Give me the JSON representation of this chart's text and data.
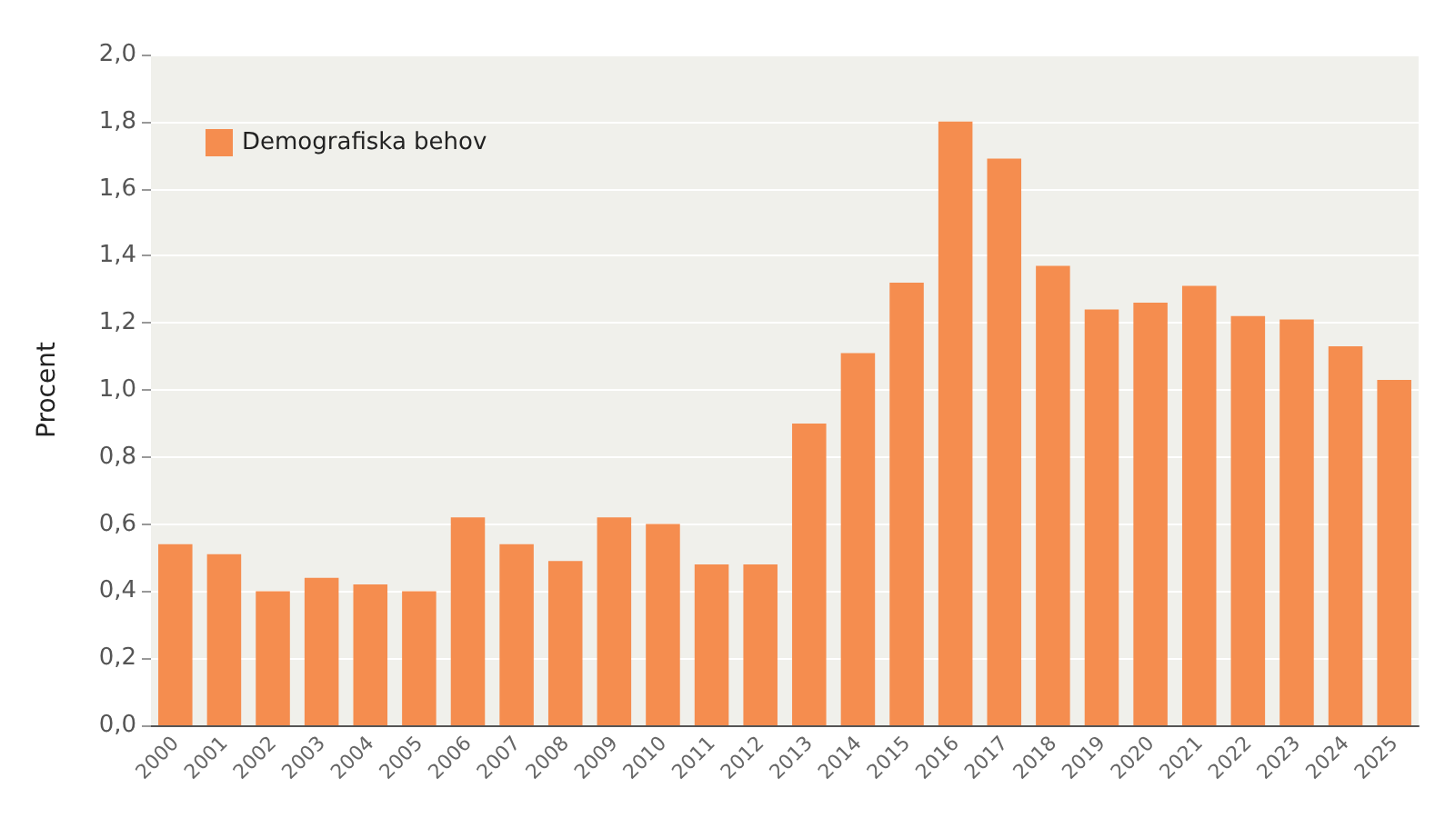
{
  "chart_data": {
    "type": "bar",
    "ylabel": "Procent",
    "categories": [
      "2000",
      "2001",
      "2002",
      "2003",
      "2004",
      "2005",
      "2006",
      "2007",
      "2008",
      "2009",
      "2010",
      "2011",
      "2012",
      "2013",
      "2014",
      "2015",
      "2016",
      "2017",
      "2018",
      "2019",
      "2020",
      "2021",
      "2022",
      "2023",
      "2024",
      "2025"
    ],
    "series": [
      {
        "name": "Demografiska behov",
        "color": "#f58d4f",
        "values": [
          0.54,
          0.51,
          0.4,
          0.44,
          0.42,
          0.4,
          0.62,
          0.54,
          0.49,
          0.62,
          0.6,
          0.48,
          0.48,
          0.9,
          1.11,
          1.32,
          1.8,
          1.69,
          1.37,
          1.24,
          1.26,
          1.31,
          1.22,
          1.21,
          1.13,
          1.03
        ]
      }
    ],
    "ylim": [
      0,
      2
    ],
    "yticks": [
      {
        "value": 0,
        "label": "0,0"
      },
      {
        "value": 0.2,
        "label": "0,2"
      },
      {
        "value": 0.4,
        "label": "0,4"
      },
      {
        "value": 0.6,
        "label": "0,6"
      },
      {
        "value": 0.8,
        "label": "0,8"
      },
      {
        "value": 1,
        "label": "1,0"
      },
      {
        "value": 1.2,
        "label": "1,2"
      },
      {
        "value": 1.4,
        "label": "1,4"
      },
      {
        "value": 1.6,
        "label": "1,6"
      },
      {
        "value": 1.8,
        "label": "1,8"
      },
      {
        "value": 2,
        "label": "2,0"
      }
    ],
    "grid": "y",
    "legend": "top left"
  }
}
